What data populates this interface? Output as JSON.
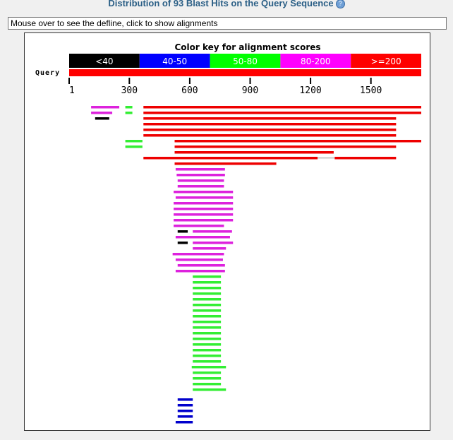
{
  "header": {
    "title": "Distribution of 93 Blast Hits on the Query Sequence",
    "help_icon": "help-icon"
  },
  "defline_box": {
    "text": "Mouse over to see the defline, click to show alignments"
  },
  "chart_data": {
    "type": "alignment-overview",
    "title": "Color key for alignment scores",
    "color_key": [
      {
        "label": "<40",
        "color": "#000000",
        "text_color": "#ffffff"
      },
      {
        "label": "40-50",
        "color": "#0000ff",
        "text_color": "#ffffff"
      },
      {
        "label": "50-80",
        "color": "#00ff00",
        "text_color": "#ffffff"
      },
      {
        "label": "80-200",
        "color": "#ff00ff",
        "text_color": "#ffffff"
      },
      {
        "label": ">=200",
        "color": "#ff0000",
        "text_color": "#ffffff"
      }
    ],
    "query_label": "Query",
    "query_length": 1750,
    "axis_ticks": [
      "1",
      "300",
      "600",
      "900",
      "1200",
      "1500"
    ],
    "tick_values": [
      1,
      300,
      600,
      900,
      1200,
      1500
    ],
    "hits": [
      {
        "segments": [
          [
            110,
            250,
            "m"
          ],
          [
            280,
            315,
            "g"
          ],
          [
            370,
            1750,
            "r"
          ]
        ]
      },
      {
        "segments": [
          [
            110,
            215,
            "m"
          ],
          [
            280,
            315,
            "g"
          ],
          [
            370,
            1750,
            "r"
          ]
        ]
      },
      {
        "segments": [
          [
            130,
            200,
            "k"
          ],
          [
            370,
            1625,
            "r"
          ]
        ]
      },
      {
        "segments": [
          [
            370,
            1625,
            "r"
          ]
        ]
      },
      {
        "segments": [
          [
            370,
            1625,
            "r"
          ]
        ]
      },
      {
        "segments": [
          [
            370,
            1625,
            "r"
          ]
        ]
      },
      {
        "segments": [
          [
            280,
            365,
            "g"
          ],
          [
            525,
            1750,
            "r"
          ]
        ]
      },
      {
        "segments": [
          [
            280,
            365,
            "g"
          ],
          [
            525,
            1625,
            "r"
          ]
        ]
      },
      {
        "segments": [
          [
            525,
            1315,
            "r"
          ]
        ]
      },
      {
        "segments": [
          [
            370,
            1235,
            "r"
          ],
          [
            1320,
            1625,
            "r"
          ]
        ]
      },
      {
        "segments": [
          [
            525,
            1030,
            "r"
          ]
        ]
      },
      {
        "segments": [
          [
            530,
            775,
            "m"
          ]
        ]
      },
      {
        "segments": [
          [
            535,
            775,
            "m"
          ]
        ]
      },
      {
        "segments": [
          [
            540,
            770,
            "m"
          ]
        ]
      },
      {
        "segments": [
          [
            540,
            770,
            "m"
          ]
        ]
      },
      {
        "segments": [
          [
            520,
            815,
            "m"
          ]
        ]
      },
      {
        "segments": [
          [
            530,
            815,
            "m"
          ]
        ]
      },
      {
        "segments": [
          [
            520,
            815,
            "m"
          ]
        ]
      },
      {
        "segments": [
          [
            520,
            815,
            "m"
          ]
        ]
      },
      {
        "segments": [
          [
            520,
            815,
            "m"
          ]
        ]
      },
      {
        "segments": [
          [
            520,
            815,
            "m"
          ]
        ]
      },
      {
        "segments": [
          [
            520,
            770,
            "m"
          ]
        ]
      },
      {
        "segments": [
          [
            540,
            590,
            "k"
          ],
          [
            615,
            810,
            "m"
          ]
        ]
      },
      {
        "segments": [
          [
            530,
            800,
            "m"
          ]
        ]
      },
      {
        "segments": [
          [
            540,
            590,
            "k"
          ],
          [
            615,
            815,
            "m"
          ]
        ]
      },
      {
        "segments": [
          [
            615,
            780,
            "m"
          ]
        ]
      },
      {
        "segments": [
          [
            515,
            770,
            "m"
          ]
        ]
      },
      {
        "segments": [
          [
            530,
            765,
            "m"
          ]
        ]
      },
      {
        "segments": [
          [
            540,
            775,
            "m"
          ]
        ]
      },
      {
        "segments": [
          [
            530,
            775,
            "m"
          ]
        ]
      },
      {
        "segments": [
          [
            615,
            755,
            "g"
          ]
        ]
      },
      {
        "segments": [
          [
            615,
            755,
            "g"
          ]
        ]
      },
      {
        "segments": [
          [
            615,
            755,
            "g"
          ]
        ]
      },
      {
        "segments": [
          [
            615,
            755,
            "g"
          ]
        ]
      },
      {
        "segments": [
          [
            615,
            755,
            "g"
          ]
        ]
      },
      {
        "segments": [
          [
            615,
            755,
            "g"
          ]
        ]
      },
      {
        "segments": [
          [
            615,
            755,
            "g"
          ]
        ]
      },
      {
        "segments": [
          [
            615,
            755,
            "g"
          ]
        ]
      },
      {
        "segments": [
          [
            615,
            755,
            "g"
          ]
        ]
      },
      {
        "segments": [
          [
            615,
            755,
            "g"
          ]
        ]
      },
      {
        "segments": [
          [
            615,
            755,
            "g"
          ]
        ]
      },
      {
        "segments": [
          [
            615,
            755,
            "g"
          ]
        ]
      },
      {
        "segments": [
          [
            615,
            755,
            "g"
          ]
        ]
      },
      {
        "segments": [
          [
            615,
            755,
            "g"
          ]
        ]
      },
      {
        "segments": [
          [
            615,
            755,
            "g"
          ]
        ]
      },
      {
        "segments": [
          [
            615,
            755,
            "g"
          ]
        ]
      },
      {
        "segments": [
          [
            610,
            780,
            "g"
          ]
        ]
      },
      {
        "segments": [
          [
            615,
            755,
            "g"
          ]
        ]
      },
      {
        "segments": [
          [
            615,
            755,
            "g"
          ]
        ]
      },
      {
        "segments": [
          [
            615,
            755,
            "g"
          ]
        ]
      },
      {
        "segments": [
          [
            615,
            780,
            "g"
          ]
        ]
      },
      {
        "segments": [
          [
            540,
            615,
            "b"
          ]
        ]
      },
      {
        "segments": [
          [
            540,
            615,
            "b"
          ]
        ]
      },
      {
        "segments": [
          [
            540,
            615,
            "b"
          ]
        ]
      },
      {
        "segments": [
          [
            540,
            615,
            "b"
          ]
        ]
      },
      {
        "segments": [
          [
            530,
            615,
            "b"
          ]
        ]
      }
    ]
  },
  "colors": {
    "k": "#000000",
    "b": "#0000cc",
    "g": "#33ee33",
    "m": "#dd22dd",
    "r": "#ee0000"
  }
}
